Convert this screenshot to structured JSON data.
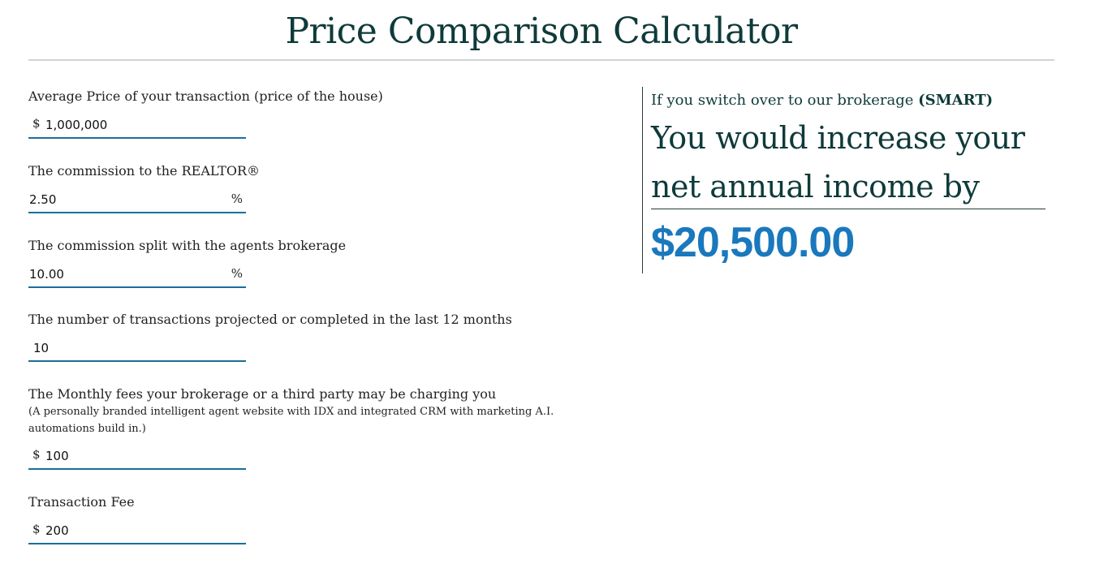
{
  "header": {
    "title": "Price Comparison Calculator"
  },
  "form": {
    "average_price": {
      "label": "Average Price of your transaction (price of the house)",
      "prefix": "$",
      "value": "1,000,000"
    },
    "commission": {
      "label": "The commission to the REALTOR®",
      "value": "2.50",
      "suffix": "%"
    },
    "commission_split": {
      "label": "The commission split with the agents brokerage",
      "value": "10.00",
      "suffix": "%"
    },
    "transactions": {
      "label": "The number of transactions projected or completed in the last 12 months",
      "value": "10"
    },
    "monthly_fees": {
      "label": "The Monthly fees your brokerage or a third party may be charging you",
      "sublabel": "(A personally branded intelligent agent website with IDX and integrated CRM with marketing A.I. automations build in.)",
      "prefix": "$",
      "value": "100"
    },
    "transaction_fee": {
      "label": "Transaction Fee",
      "prefix": "$",
      "value": "200"
    }
  },
  "result": {
    "intro": "If you switch over to our brokerage",
    "brand": "(SMART)",
    "headline": "You would increase your net annual income by",
    "amount": "$20,500.00"
  },
  "colors": {
    "title": "#0f3a3a",
    "input_underline": "#1b6e9a",
    "amount": "#1a78bd"
  }
}
